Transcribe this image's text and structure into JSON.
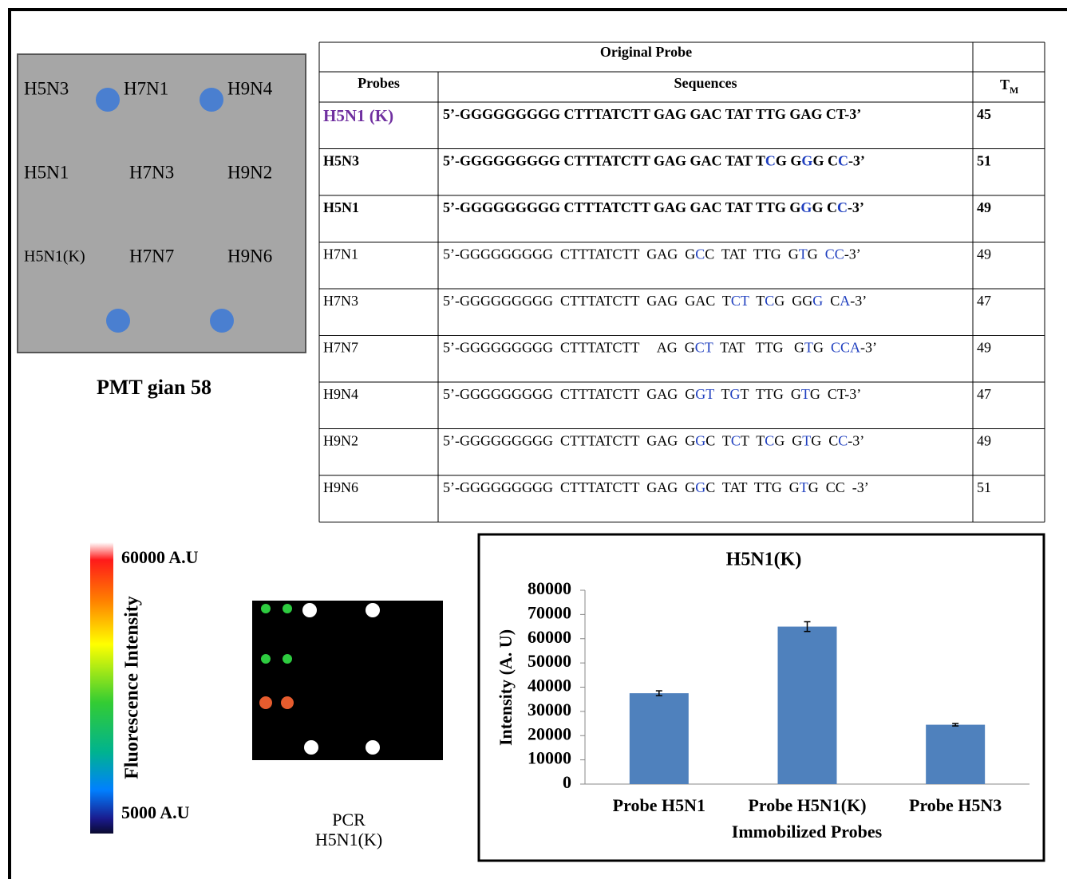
{
  "grid_panel": {
    "labels": [
      [
        "H5N3",
        "H7N1",
        "H9N4"
      ],
      [
        "H5N1",
        "H7N3",
        "H9N2"
      ],
      [
        "H5N1(K)",
        "H7N7",
        "H9N6"
      ]
    ],
    "caption": "PMT gian 58"
  },
  "table": {
    "title": "Original Probe",
    "headers": [
      "Probes",
      "Sequences"
    ],
    "tm_header": {
      "main": "T",
      "sub": "M"
    },
    "rows": [
      {
        "probe": "H5N1 (K)",
        "segments": [
          "5’-GGGGGGGGG CTTTATCTT GAG GAC TAT TTG GAG CT-3’"
        ],
        "tm": 45
      },
      {
        "probe": "H5N3",
        "segments": [
          "5’-GGGGGGGGG CTTTATCTT GAG GAC TAT T",
          "C",
          "G G",
          "G",
          "G C",
          "C",
          "-3’"
        ],
        "tm": 51
      },
      {
        "probe": "H5N1",
        "segments": [
          "5’-GGGGGGGGG CTTTATCTT GAG GAC TAT TTG G",
          "G",
          "G C",
          "C",
          "-3’"
        ],
        "tm": 49
      },
      {
        "probe": "H7N1",
        "segments": [
          "5’-GGGGGGGGG  CTTTATCTT  GAG  G",
          "C",
          "C  TAT  TTG  G",
          "T",
          "G  ",
          "CC",
          "-3’"
        ],
        "tm": 49
      },
      {
        "probe": "H7N3",
        "segments": [
          "5’-GGGGGGGGG  CTTTATCTT  GAG  GAC  T",
          "CT",
          "  T",
          "C",
          "G  GG",
          "G",
          "  C",
          "A",
          "-3’"
        ],
        "tm": 47
      },
      {
        "probe": "H7N7",
        "segments": [
          "5’-GGGGGGGGG  CTTTATCTT     AG  G",
          "CT",
          "  TAT   TTG   G",
          "T",
          "G  ",
          "CCA",
          "-3’"
        ],
        "tm": 49
      },
      {
        "probe": "H9N4",
        "segments": [
          "5’-GGGGGGGGG  CTTTATCTT  GAG  G",
          "GT",
          "  T",
          "G",
          "T  TTG  G",
          "T",
          "G  CT-3’"
        ],
        "tm": 47
      },
      {
        "probe": "H9N2",
        "segments": [
          "5’-GGGGGGGGG  CTTTATCTT  GAG  G",
          "G",
          "C  T",
          "C",
          "T  T",
          "C",
          "G  G",
          "T",
          "G  C",
          "C",
          "-3’"
        ],
        "tm": 49
      },
      {
        "probe": "H9N6",
        "segments": [
          "5’-GGGGGGGGG  CTTTATCTT  GAG  G",
          "G",
          "C  TAT  TTG  G",
          "T",
          "G  CC  -3’"
        ],
        "tm": 51
      }
    ]
  },
  "colorbar": {
    "max_label": "60000 A.U",
    "min_label": "5000 A.U",
    "title": "Fluorescence Intensity"
  },
  "pcr_image": {
    "caption": [
      "PCR",
      "H5N1(K)"
    ]
  },
  "chart_data": {
    "type": "bar",
    "title": "H5N1(K)",
    "x_label": "Immobilized Probes",
    "y_label": "Intensity (A. U)",
    "categories": [
      "Probe H5N1",
      "Probe H5N1(K)",
      "Probe H5N3"
    ],
    "values": [
      37500,
      65000,
      24500
    ],
    "errors": [
      1000,
      2000,
      500
    ],
    "color": "#4f81bd",
    "ylim": [
      0,
      80000
    ],
    "yticks": [
      0,
      10000,
      20000,
      30000,
      40000,
      50000,
      60000,
      70000,
      80000
    ]
  }
}
